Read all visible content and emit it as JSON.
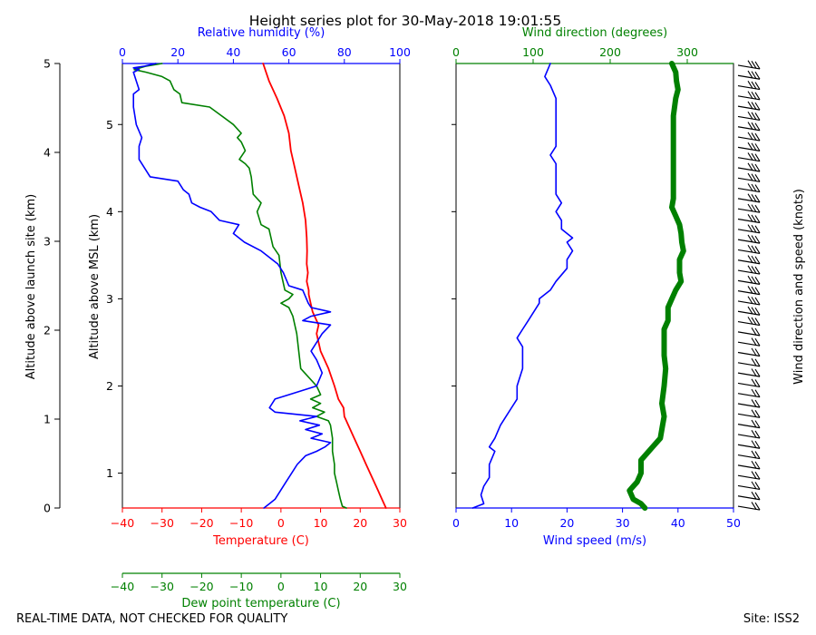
{
  "chart_data": {
    "type": "line",
    "title": "Height series plot for 30-May-2018 19:01:55",
    "footer_left": "REAL-TIME DATA, NOT CHECKED FOR QUALITY",
    "footer_right": "Site: ISS2",
    "colors": {
      "red": "#ff0000",
      "green": "#008000",
      "blue": "#0000ff",
      "black": "#000000"
    },
    "left_panel": {
      "xlabel_temperature": "Temperature (C)",
      "xlabel_dewpoint": "Dew point temperature (C)",
      "xlabel_rh": "Relative humidity (%)",
      "ylabel_msl": "Altitude above MSL (km)",
      "ylabel_launch": "Altitude above launch site (km)",
      "temp_xlim": [
        -40,
        30
      ],
      "temp_ticks": [
        "−40",
        "−30",
        "−20",
        "−10",
        "0",
        "10",
        "20",
        "30"
      ],
      "rh_xlim": [
        0,
        100
      ],
      "rh_ticks": [
        "0",
        "20",
        "40",
        "60",
        "80",
        "100"
      ],
      "msl_ylim": [
        0.8,
        5.9
      ],
      "msl_ticks": [
        {
          "v": 1.2,
          "label": "1"
        },
        {
          "v": 2.2,
          "label": "2"
        },
        {
          "v": 3.2,
          "label": "3"
        },
        {
          "v": 4.2,
          "label": "4"
        },
        {
          "v": 5.2,
          "label": "5"
        }
      ],
      "launch_ticks": [
        {
          "v": 0,
          "label": "0"
        },
        {
          "v": 1,
          "label": "1"
        },
        {
          "v": 2,
          "label": "2"
        },
        {
          "v": 3,
          "label": "3"
        },
        {
          "v": 4,
          "label": "4"
        },
        {
          "v": 5,
          "label": "5"
        }
      ],
      "series": [
        {
          "name": "Temperature",
          "unit": "C",
          "color": "#ff0000",
          "points": [
            [
              26.5,
              0.8
            ],
            [
              25.5,
              0.9
            ],
            [
              24.5,
              1.0
            ],
            [
              23,
              1.15
            ],
            [
              21.5,
              1.3
            ],
            [
              20,
              1.45
            ],
            [
              18.5,
              1.6
            ],
            [
              17,
              1.75
            ],
            [
              16,
              1.85
            ],
            [
              15.8,
              1.95
            ],
            [
              14.5,
              2.05
            ],
            [
              13.5,
              2.2
            ],
            [
              12,
              2.4
            ],
            [
              10,
              2.6
            ],
            [
              9,
              2.8
            ],
            [
              9.5,
              2.9
            ],
            [
              8,
              3.05
            ],
            [
              7.5,
              3.15
            ],
            [
              7,
              3.25
            ],
            [
              7,
              3.3
            ],
            [
              6.5,
              3.4
            ],
            [
              6.8,
              3.5
            ],
            [
              6.5,
              3.6
            ],
            [
              6.6,
              3.75
            ],
            [
              6.5,
              3.9
            ],
            [
              6.2,
              4.1
            ],
            [
              5.5,
              4.3
            ],
            [
              4.5,
              4.5
            ],
            [
              3.5,
              4.7
            ],
            [
              2.5,
              4.9
            ],
            [
              2,
              5.1
            ],
            [
              0.8,
              5.3
            ],
            [
              -1,
              5.5
            ],
            [
              -3,
              5.7
            ],
            [
              -4.5,
              5.9
            ]
          ]
        },
        {
          "name": "Dew point temperature",
          "unit": "C",
          "color": "#008000",
          "points": [
            [
              16.5,
              0.8
            ],
            [
              15.5,
              0.82
            ],
            [
              15,
              0.9
            ],
            [
              14.5,
              1.0
            ],
            [
              14,
              1.1
            ],
            [
              13.5,
              1.2
            ],
            [
              13.5,
              1.3
            ],
            [
              13,
              1.45
            ],
            [
              13,
              1.6
            ],
            [
              12.5,
              1.75
            ],
            [
              12,
              1.8
            ],
            [
              9,
              1.85
            ],
            [
              11,
              1.9
            ],
            [
              8,
              1.95
            ],
            [
              10,
              2.0
            ],
            [
              7.5,
              2.05
            ],
            [
              10,
              2.1
            ],
            [
              9,
              2.2
            ],
            [
              5,
              2.4
            ],
            [
              4.5,
              2.6
            ],
            [
              4,
              2.8
            ],
            [
              3,
              3.0
            ],
            [
              2,
              3.1
            ],
            [
              0,
              3.15
            ],
            [
              2,
              3.2
            ],
            [
              3,
              3.25
            ],
            [
              1,
              3.3
            ],
            [
              0,
              3.5
            ],
            [
              -0.5,
              3.7
            ],
            [
              -2,
              3.8
            ],
            [
              -3,
              4.0
            ],
            [
              -5,
              4.05
            ],
            [
              -6,
              4.2
            ],
            [
              -5,
              4.3
            ],
            [
              -7,
              4.4
            ],
            [
              -7.5,
              4.6
            ],
            [
              -8,
              4.7
            ],
            [
              -9,
              4.75
            ],
            [
              -10.5,
              4.8
            ],
            [
              -9,
              4.9
            ],
            [
              -10,
              5.0
            ],
            [
              -11,
              5.05
            ],
            [
              -10,
              5.1
            ],
            [
              -12,
              5.2
            ],
            [
              -15,
              5.3
            ],
            [
              -18,
              5.4
            ],
            [
              -25,
              5.45
            ],
            [
              -25.5,
              5.55
            ],
            [
              -27,
              5.6
            ],
            [
              -28,
              5.7
            ],
            [
              -30,
              5.75
            ],
            [
              -34,
              5.8
            ],
            [
              -37,
              5.83
            ],
            [
              -34,
              5.87
            ],
            [
              -30,
              5.9
            ]
          ]
        },
        {
          "name": "Relative humidity",
          "unit": "%",
          "color": "#0000ff",
          "points": [
            [
              51,
              0.8
            ],
            [
              53,
              0.85
            ],
            [
              55,
              0.9
            ],
            [
              57,
              1.0
            ],
            [
              59,
              1.1
            ],
            [
              61,
              1.2
            ],
            [
              63,
              1.3
            ],
            [
              66,
              1.4
            ],
            [
              70,
              1.45
            ],
            [
              73,
              1.5
            ],
            [
              75,
              1.55
            ],
            [
              68,
              1.6
            ],
            [
              72,
              1.65
            ],
            [
              66,
              1.7
            ],
            [
              71,
              1.75
            ],
            [
              64,
              1.8
            ],
            [
              70,
              1.85
            ],
            [
              55,
              1.9
            ],
            [
              53,
              1.95
            ],
            [
              55,
              2.05
            ],
            [
              60,
              2.1
            ],
            [
              70,
              2.2
            ],
            [
              72,
              2.35
            ],
            [
              70,
              2.5
            ],
            [
              68,
              2.6
            ],
            [
              70,
              2.7
            ],
            [
              72,
              2.8
            ],
            [
              75,
              2.9
            ],
            [
              65,
              2.95
            ],
            [
              68,
              3.0
            ],
            [
              75,
              3.05
            ],
            [
              68,
              3.1
            ],
            [
              67,
              3.15
            ],
            [
              65,
              3.3
            ],
            [
              60,
              3.35
            ],
            [
              58,
              3.5
            ],
            [
              56,
              3.6
            ],
            [
              52,
              3.7
            ],
            [
              50,
              3.75
            ],
            [
              44,
              3.85
            ],
            [
              40,
              3.95
            ],
            [
              42,
              4.05
            ],
            [
              35,
              4.1
            ],
            [
              32,
              4.2
            ],
            [
              28,
              4.25
            ],
            [
              25,
              4.3
            ],
            [
              24,
              4.4
            ],
            [
              22,
              4.45
            ],
            [
              20,
              4.55
            ],
            [
              10,
              4.6
            ],
            [
              8,
              4.7
            ],
            [
              6,
              4.8
            ],
            [
              6,
              4.95
            ],
            [
              7,
              5.05
            ],
            [
              5,
              5.2
            ],
            [
              4,
              5.4
            ],
            [
              4,
              5.55
            ],
            [
              6,
              5.6
            ],
            [
              5,
              5.7
            ],
            [
              4,
              5.8
            ],
            [
              6,
              5.83
            ],
            [
              4,
              5.85
            ],
            [
              8,
              5.87
            ],
            [
              12,
              5.9
            ]
          ]
        }
      ]
    },
    "right_panel": {
      "xlabel_speed": "Wind speed (m/s)",
      "xlabel_direction": "Wind direction (degrees)",
      "ylabel_barbs": "Wind direction and speed (knots)",
      "speed_xlim": [
        0,
        50
      ],
      "speed_ticks": [
        "0",
        "10",
        "20",
        "30",
        "40",
        "50"
      ],
      "direction_xlim": [
        0,
        360
      ],
      "direction_ticks": [
        "0",
        "100",
        "200",
        "300"
      ],
      "series": [
        {
          "name": "Wind speed",
          "unit": "m/s",
          "color": "#0000ff",
          "points": [
            [
              3,
              0.8
            ],
            [
              5,
              0.85
            ],
            [
              4.5,
              0.95
            ],
            [
              5,
              1.05
            ],
            [
              6,
              1.15
            ],
            [
              6,
              1.3
            ],
            [
              7,
              1.45
            ],
            [
              6,
              1.5
            ],
            [
              7,
              1.6
            ],
            [
              8,
              1.75
            ],
            [
              9,
              1.85
            ],
            [
              10,
              1.95
            ],
            [
              11,
              2.05
            ],
            [
              11,
              2.2
            ],
            [
              12,
              2.4
            ],
            [
              12,
              2.55
            ],
            [
              12,
              2.65
            ],
            [
              11,
              2.75
            ],
            [
              12,
              2.85
            ],
            [
              13,
              2.95
            ],
            [
              14,
              3.05
            ],
            [
              15,
              3.15
            ],
            [
              15,
              3.2
            ],
            [
              17,
              3.3
            ],
            [
              18,
              3.4
            ],
            [
              20,
              3.55
            ],
            [
              20,
              3.65
            ],
            [
              21,
              3.75
            ],
            [
              20,
              3.85
            ],
            [
              21,
              3.9
            ],
            [
              19,
              4.0
            ],
            [
              19,
              4.1
            ],
            [
              18,
              4.2
            ],
            [
              19,
              4.3
            ],
            [
              18,
              4.4
            ],
            [
              18,
              4.5
            ],
            [
              18,
              4.65
            ],
            [
              18,
              4.75
            ],
            [
              17,
              4.85
            ],
            [
              18,
              4.95
            ],
            [
              18,
              5.1
            ],
            [
              18,
              5.25
            ],
            [
              18,
              5.35
            ],
            [
              18,
              5.5
            ],
            [
              17,
              5.65
            ],
            [
              16,
              5.75
            ],
            [
              17,
              5.9
            ]
          ]
        },
        {
          "name": "Wind direction",
          "unit": "degrees",
          "color": "#008000",
          "points": [
            [
              245,
              0.8
            ],
            [
              240,
              0.85
            ],
            [
              230,
              0.9
            ],
            [
              225,
              1.0
            ],
            [
              230,
              1.05
            ],
            [
              235,
              1.1
            ],
            [
              240,
              1.2
            ],
            [
              240,
              1.35
            ],
            [
              245,
              1.4
            ],
            [
              255,
              1.5
            ],
            [
              265,
              1.6
            ],
            [
              268,
              1.75
            ],
            [
              270,
              1.85
            ],
            [
              267,
              2.0
            ],
            [
              270,
              2.2
            ],
            [
              272,
              2.4
            ],
            [
              270,
              2.55
            ],
            [
              270,
              2.65
            ],
            [
              270,
              2.75
            ],
            [
              270,
              2.85
            ],
            [
              275,
              2.95
            ],
            [
              275,
              3.1
            ],
            [
              280,
              3.2
            ],
            [
              285,
              3.3
            ],
            [
              292,
              3.4
            ],
            [
              290,
              3.5
            ],
            [
              290,
              3.65
            ],
            [
              295,
              3.75
            ],
            [
              293,
              3.85
            ],
            [
              292,
              3.95
            ],
            [
              290,
              4.05
            ],
            [
              285,
              4.15
            ],
            [
              280,
              4.25
            ],
            [
              282,
              4.35
            ],
            [
              282,
              4.5
            ],
            [
              282,
              4.7
            ],
            [
              282,
              4.9
            ],
            [
              282,
              5.1
            ],
            [
              282,
              5.3
            ],
            [
              285,
              5.5
            ],
            [
              288,
              5.6
            ],
            [
              286,
              5.7
            ],
            [
              285,
              5.8
            ],
            [
              280,
              5.9
            ]
          ]
        }
      ]
    }
  }
}
